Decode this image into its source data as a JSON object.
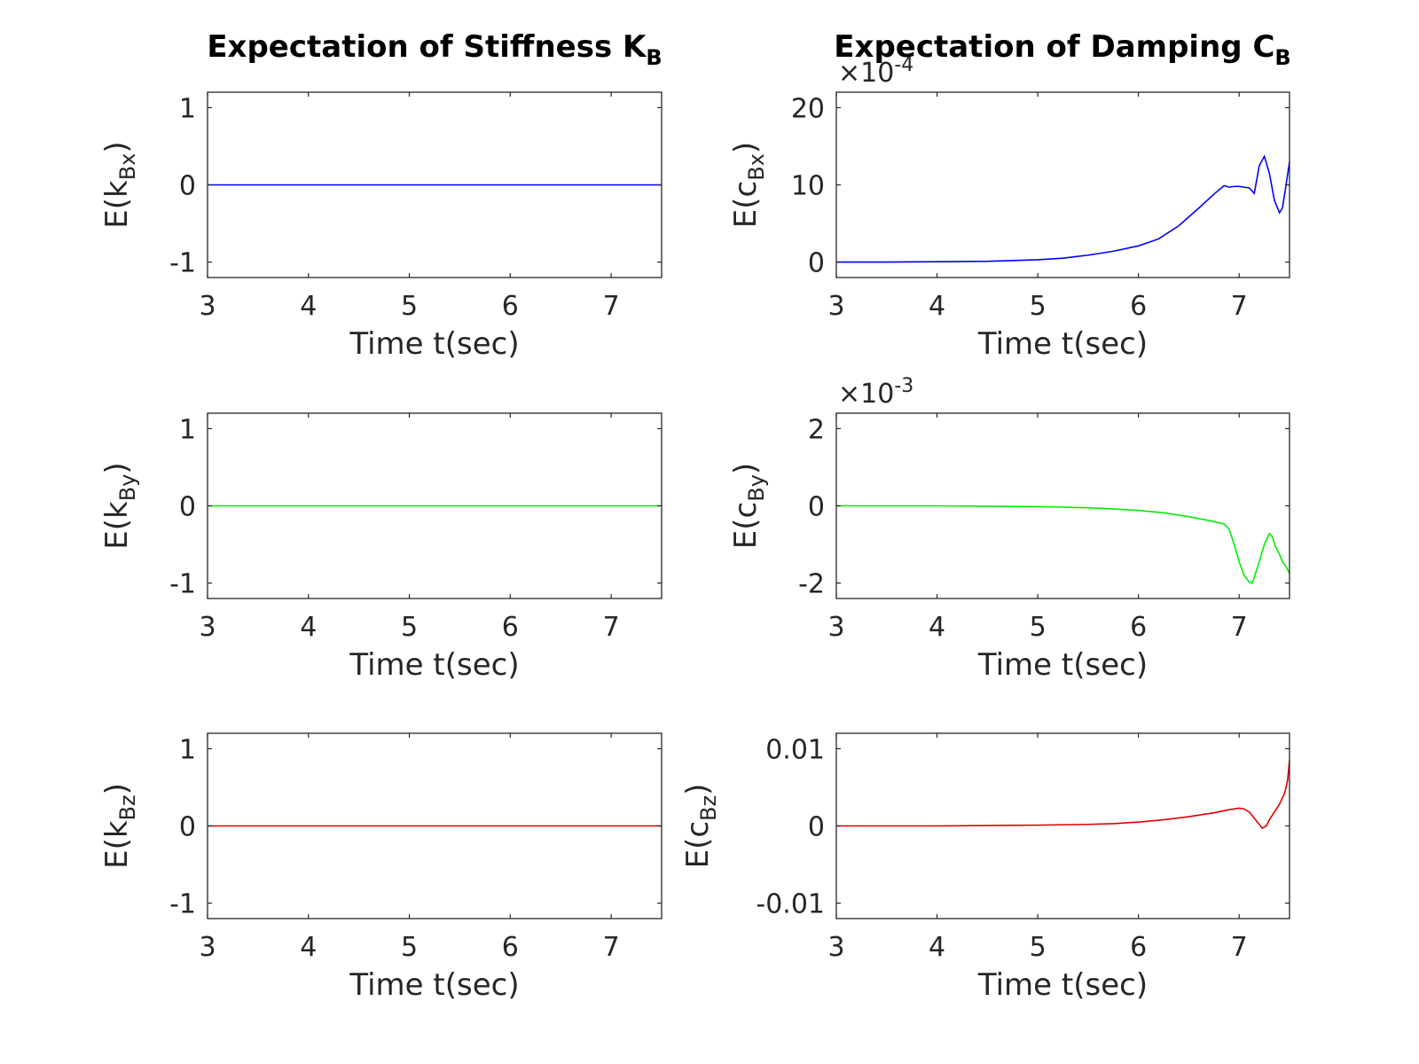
{
  "chart_data": [
    {
      "type": "line",
      "title": "Expectation of Stiffness K",
      "title_subscript": "B",
      "xlabel": "Time t(sec)",
      "ylabel_base": "E(k",
      "ylabel_subscript": "Bx",
      "ylabel_suffix": ")",
      "xlim": [
        3,
        7.5
      ],
      "ylim": [
        -1.2,
        1.2
      ],
      "xticks": [
        3,
        4,
        5,
        6,
        7
      ],
      "yticks": [
        -1,
        0,
        1
      ],
      "ytick_labels": [
        "-1",
        "0",
        "1"
      ],
      "color": "#0000ff",
      "series": [
        {
          "x": [
            3,
            7.5
          ],
          "y": [
            0,
            0
          ]
        }
      ]
    },
    {
      "type": "line",
      "title": "Expectation of Damping C",
      "title_subscript": "B",
      "xlabel": "Time t(sec)",
      "ylabel_base": "E(c",
      "ylabel_subscript": "Bx",
      "ylabel_suffix": ")",
      "xlim": [
        3,
        7.5
      ],
      "ylim": [
        -2,
        22
      ],
      "xticks": [
        3,
        4,
        5,
        6,
        7
      ],
      "yticks": [
        0,
        10,
        20
      ],
      "ytick_labels": [
        "0",
        "10",
        "20"
      ],
      "exponent_label": "×10",
      "exponent_power": "-4",
      "color": "#0000ff",
      "series": [
        {
          "x": [
            3,
            3.5,
            4,
            4.5,
            5,
            5.25,
            5.5,
            5.75,
            6,
            6.2,
            6.4,
            6.6,
            6.75,
            6.85,
            6.9,
            6.95,
            7.0,
            7.05,
            7.1,
            7.15,
            7.2,
            7.25,
            7.3,
            7.35,
            7.4,
            7.43,
            7.46,
            7.5
          ],
          "y": [
            0,
            0,
            0.05,
            0.1,
            0.3,
            0.5,
            0.9,
            1.4,
            2.1,
            3.0,
            4.7,
            7.0,
            8.8,
            9.9,
            9.7,
            9.8,
            9.8,
            9.7,
            9.6,
            8.9,
            12.5,
            13.7,
            11.5,
            8.0,
            6.4,
            7.0,
            9.5,
            13.0
          ]
        }
      ]
    },
    {
      "type": "line",
      "title": "",
      "xlabel": "Time t(sec)",
      "ylabel_base": "E(k",
      "ylabel_subscript": "By",
      "ylabel_suffix": ")",
      "xlim": [
        3,
        7.5
      ],
      "ylim": [
        -1.2,
        1.2
      ],
      "xticks": [
        3,
        4,
        5,
        6,
        7
      ],
      "yticks": [
        -1,
        0,
        1
      ],
      "ytick_labels": [
        "-1",
        "0",
        "1"
      ],
      "color": "#00ee00",
      "series": [
        {
          "x": [
            3,
            7.5
          ],
          "y": [
            0,
            0
          ]
        }
      ]
    },
    {
      "type": "line",
      "title": "",
      "xlabel": "Time t(sec)",
      "ylabel_base": "E(c",
      "ylabel_subscript": "By",
      "ylabel_suffix": ")",
      "xlim": [
        3,
        7.5
      ],
      "ylim": [
        -2.4,
        2.4
      ],
      "xticks": [
        3,
        4,
        5,
        6,
        7
      ],
      "yticks": [
        -2,
        0,
        2
      ],
      "ytick_labels": [
        "-2",
        "0",
        "2"
      ],
      "exponent_label": "×10",
      "exponent_power": "-3",
      "color": "#00ee00",
      "series": [
        {
          "x": [
            3,
            3.5,
            4,
            4.5,
            5,
            5.5,
            5.75,
            6,
            6.25,
            6.5,
            6.7,
            6.85,
            6.9,
            6.95,
            7.0,
            7.05,
            7.1,
            7.13,
            7.15,
            7.2,
            7.25,
            7.3,
            7.33,
            7.36,
            7.4,
            7.43,
            7.46,
            7.5
          ],
          "y": [
            0,
            0,
            0,
            -0.01,
            -0.02,
            -0.05,
            -0.08,
            -0.12,
            -0.18,
            -0.28,
            -0.38,
            -0.47,
            -0.6,
            -1.0,
            -1.45,
            -1.8,
            -1.98,
            -2.0,
            -1.85,
            -1.45,
            -1.0,
            -0.72,
            -0.8,
            -1.05,
            -1.25,
            -1.45,
            -1.55,
            -1.75
          ]
        }
      ]
    },
    {
      "type": "line",
      "title": "",
      "xlabel": "Time t(sec)",
      "ylabel_base": "E(k",
      "ylabel_subscript": "Bz",
      "ylabel_suffix": ")",
      "xlim": [
        3,
        7.5
      ],
      "ylim": [
        -1.2,
        1.2
      ],
      "xticks": [
        3,
        4,
        5,
        6,
        7
      ],
      "yticks": [
        -1,
        0,
        1
      ],
      "ytick_labels": [
        "-1",
        "0",
        "1"
      ],
      "color": "#dd0000",
      "series": [
        {
          "x": [
            3,
            7.5
          ],
          "y": [
            0,
            0
          ]
        }
      ]
    },
    {
      "type": "line",
      "title": "",
      "xlabel": "Time t(sec)",
      "ylabel_base": "E(c",
      "ylabel_subscript": "Bz",
      "ylabel_suffix": ")",
      "xlim": [
        3,
        7.5
      ],
      "ylim": [
        -0.012,
        0.012
      ],
      "xticks": [
        3,
        4,
        5,
        6,
        7
      ],
      "yticks": [
        -0.01,
        0,
        0.01
      ],
      "ytick_labels": [
        "-0.01",
        "0",
        "0.01"
      ],
      "color": "#dd0000",
      "series": [
        {
          "x": [
            3,
            4,
            4.5,
            5,
            5.5,
            5.75,
            6,
            6.25,
            6.5,
            6.75,
            6.9,
            7.0,
            7.05,
            7.1,
            7.15,
            7.2,
            7.23,
            7.27,
            7.3,
            7.35,
            7.4,
            7.45,
            7.48,
            7.5
          ],
          "y": [
            0,
            0,
            5e-05,
            0.0001,
            0.0002,
            0.0003,
            0.0005,
            0.0008,
            0.0012,
            0.0017,
            0.0021,
            0.0023,
            0.0022,
            0.0018,
            0.001,
            0.0002,
            -0.0003,
            0.0,
            0.0008,
            0.0018,
            0.0028,
            0.0042,
            0.0058,
            0.0085
          ]
        }
      ]
    }
  ]
}
